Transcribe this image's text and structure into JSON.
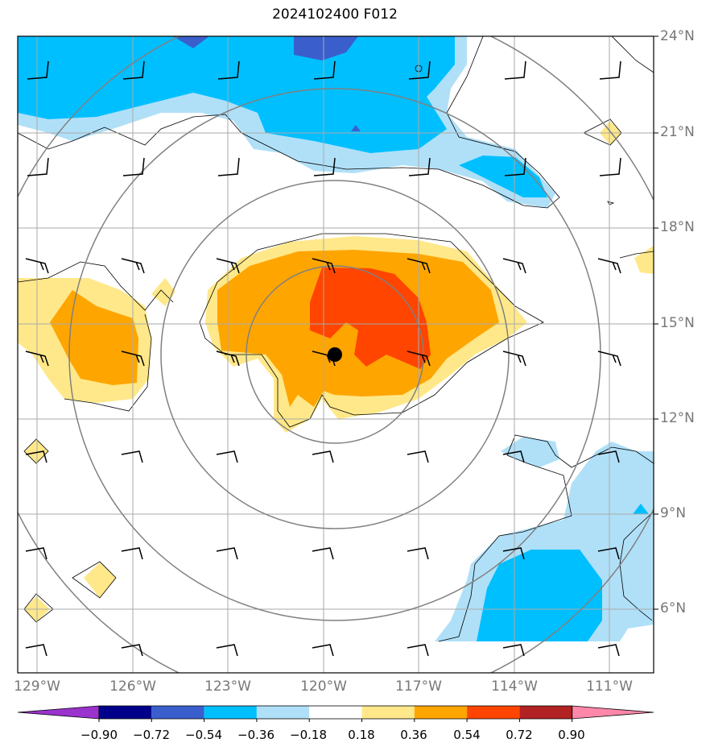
{
  "title": "2024102400 F012",
  "lat_labels": [
    "24°N",
    "21°N",
    "18°N",
    "15°N",
    "12°N",
    "9°N",
    "6°N"
  ],
  "lon_labels": [
    "129°W",
    "126°W",
    "123°W",
    "120°W",
    "117°W",
    "114°W",
    "111°W"
  ],
  "colorbar": {
    "ticks": [
      "−0.90",
      "−0.72",
      "−0.54",
      "−0.36",
      "−0.18",
      "0.18",
      "0.36",
      "0.54",
      "0.72",
      "0.90"
    ],
    "colors": [
      "#9a32cd",
      "#00008b",
      "#3a5fcd",
      "#00bfff",
      "#b0e0f8",
      "#ffffff",
      "#ffe88a",
      "#ffa500",
      "#ff4500",
      "#b22222",
      "#ff88aa"
    ]
  },
  "storm_center": {
    "lat": 14.0,
    "lon": -119.7
  },
  "colors": {
    "neg_deep": "#3a5fcd",
    "neg_mid": "#00bfff",
    "neg_light": "#b0e0f8",
    "pos_light": "#ffe88a",
    "pos_mid": "#ffa500",
    "pos_high": "#ff4500",
    "grid": "#aaaaaa",
    "range_ring": "#808080"
  }
}
